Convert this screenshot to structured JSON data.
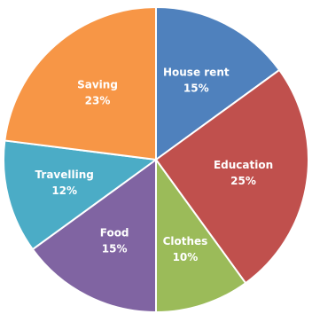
{
  "chart_data": {
    "type": "pie",
    "categories": [
      "House rent",
      "Education",
      "Clothes",
      "Food",
      "Travelling",
      "Saving"
    ],
    "values": [
      15,
      25,
      10,
      15,
      12,
      23
    ],
    "value_labels": [
      "15%",
      "25%",
      "10%",
      "15%",
      "12%",
      "23%"
    ],
    "colors": [
      "#4f81bd",
      "#c0504d",
      "#9bbb59",
      "#8064a2",
      "#4bacc6",
      "#f79646"
    ],
    "title": "",
    "legend": "none",
    "grid": false
  }
}
